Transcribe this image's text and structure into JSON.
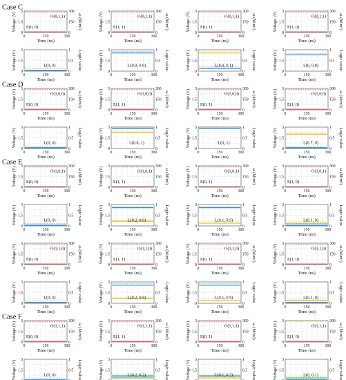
{
  "axes": {
    "time_label": "Time (ns)",
    "voltage_label": "Voltage (V)",
    "omega_label": "ω (M/m²)",
    "logic_label": "Logic value",
    "time_ticks": [
      "0",
      "150",
      "300"
    ],
    "voltage_ticks": [
      "0",
      "1.5",
      "3"
    ],
    "omega_ticks": [
      "0",
      "150",
      "300"
    ],
    "logic_ticks": [
      "0",
      "0.5",
      "1"
    ]
  },
  "colors": {
    "red": "#e02020",
    "blue": "#2f86c8",
    "yellow": "#e8c020",
    "green": "#5cc040",
    "grid": "#cfcfcf"
  },
  "sections": [
    {
      "name": "Case C",
      "rows": [
        [
          {
            "kind": "top",
            "e_label": "E(0, 0)",
            "o_label": "O(0,1,1)",
            "e_color": "red",
            "e_level": 1.0,
            "o_level": 0.92
          },
          {
            "kind": "top",
            "e_label": "E(1, 1)",
            "o_label": "O(0,1,1)",
            "e_color": "red",
            "e_level": 1.0,
            "o_level": 0.92
          },
          {
            "kind": "top",
            "e_label": "E(0, 1)",
            "o_label": "O(0,1,1)",
            "e_color": "red",
            "e_level": 1.0,
            "o_level": 0.92
          },
          {
            "kind": "top",
            "e_label": "E(1, 0)",
            "o_label": "O(0,1,1)",
            "e_color": "red",
            "e_level": 1.0,
            "o_level": 0.92
          }
        ],
        [
          {
            "kind": "bottom",
            "l_label": "L(0, 0)",
            "lines": [
              {
                "color": "blue",
                "level": 0.0
              }
            ]
          },
          {
            "kind": "bottom",
            "l_label": "L(0.9, 0.9)",
            "lines": [
              {
                "color": "blue",
                "level": 0.9
              }
            ]
          },
          {
            "kind": "bottom",
            "l_label": "L(0.9, 0.1)",
            "lines": [
              {
                "color": "yellow",
                "level": 0.9
              },
              {
                "color": "blue",
                "level": 0.1
              }
            ]
          },
          {
            "kind": "bottom",
            "l_label": "L(0, 0.8)",
            "lines": [
              {
                "color": "blue",
                "level": 0.8
              }
            ]
          }
        ]
      ]
    },
    {
      "name": "Case D",
      "rows": [
        [
          {
            "kind": "top",
            "e_label": "E(0, 0)",
            "o_label": "O(1,0,0)",
            "e_color": "red",
            "e_level": 1.0,
            "o_level": 0.92
          },
          {
            "kind": "top",
            "e_label": "E(1, 1)",
            "o_label": "O(1,0,0)",
            "e_color": "red",
            "e_level": 1.0,
            "o_level": 0.92
          },
          {
            "kind": "top",
            "e_label": "E(0, 1)",
            "o_label": "O(1,0,0)",
            "e_color": "red",
            "e_level": 1.0,
            "o_level": 0.92
          },
          {
            "kind": "top",
            "e_label": "E(1, 0)",
            "o_label": "O(1,0,0)",
            "e_color": "red",
            "e_level": 1.0,
            "o_level": 0.92
          }
        ],
        [
          {
            "kind": "bottom",
            "l_label": "L(0, 0)",
            "lines": [
              {
                "color": "blue",
                "level": 0.0
              }
            ]
          },
          {
            "kind": "bottom",
            "l_label": "L(0.8, 1)",
            "lines": [
              {
                "color": "blue",
                "level": 1.0
              },
              {
                "color": "yellow",
                "level": 0.8
              }
            ]
          },
          {
            "kind": "bottom",
            "l_label": "L(0, 1)",
            "lines": [
              {
                "color": "blue",
                "level": 1.0
              }
            ]
          },
          {
            "kind": "bottom",
            "l_label": "L(0.7, 0)",
            "lines": [
              {
                "color": "yellow",
                "level": 0.7
              },
              {
                "color": "blue",
                "level": 0.0
              }
            ]
          }
        ]
      ]
    },
    {
      "name": "Case E",
      "rows": [
        [
          {
            "kind": "top",
            "e_label": "E(0, 0)",
            "o_label": "O(1,0,1)",
            "e_color": "red",
            "e_level": 1.0,
            "o_level": 0.92
          },
          {
            "kind": "top",
            "e_label": "E(1, 1)",
            "o_label": "O(1,0,1)",
            "e_color": "red",
            "e_level": 1.0,
            "o_level": 0.92
          },
          {
            "kind": "top",
            "e_label": "E(0, 1)",
            "o_label": "O(1,0,1)",
            "e_color": "red",
            "e_level": 1.0,
            "o_level": 0.92
          },
          {
            "kind": "top",
            "e_label": "E(1, 0)",
            "o_label": "O(1,0,1)",
            "e_color": "red",
            "e_level": 1.0,
            "o_level": 0.92
          }
        ],
        [
          {
            "kind": "bottom",
            "l_label": "L(0, 0)",
            "lines": [
              {
                "color": "blue",
                "level": 0.0
              }
            ]
          },
          {
            "kind": "bottom",
            "l_label": "L(0.2, 0.9)",
            "lines": [
              {
                "color": "blue",
                "level": 0.9
              },
              {
                "color": "yellow",
                "level": 0.2
              }
            ]
          },
          {
            "kind": "bottom",
            "l_label": "L(0.1, 0.9)",
            "lines": [
              {
                "color": "blue",
                "level": 0.9
              },
              {
                "color": "yellow",
                "level": 0.1
              }
            ]
          },
          {
            "kind": "bottom",
            "l_label": "L(0.1, 0)",
            "lines": [
              {
                "color": "yellow",
                "level": 0.1
              },
              {
                "color": "blue",
                "level": 0.0
              }
            ]
          }
        ],
        [
          {
            "kind": "top",
            "e_label": "E(0, 0)",
            "o_label": "O(1,1,0)",
            "e_color": "red",
            "e_level": 1.0,
            "o_level": 0.92
          },
          {
            "kind": "top",
            "e_label": "E(1, 1)",
            "o_label": "O(1,1,0)",
            "e_color": "red",
            "e_level": 1.0,
            "o_level": 0.92
          },
          {
            "kind": "top",
            "e_label": "E(0, 1)",
            "o_label": "O(1,1,0)",
            "e_color": "red",
            "e_level": 1.0,
            "o_level": 0.92
          },
          {
            "kind": "top",
            "e_label": "E(1, 0)",
            "o_label": "O(1,1,0)",
            "e_color": "red",
            "e_level": 1.0,
            "o_level": 0.92
          }
        ],
        [
          {
            "kind": "bottom",
            "l_label": "L(0, 0)",
            "lines": [
              {
                "color": "blue",
                "level": 0.0
              }
            ]
          },
          {
            "kind": "bottom",
            "l_label": "L(0.2, 0.9)",
            "lines": [
              {
                "color": "blue",
                "level": 0.9
              },
              {
                "color": "yellow",
                "level": 0.2
              }
            ]
          },
          {
            "kind": "bottom",
            "l_label": "L(0.1, 0.9)",
            "lines": [
              {
                "color": "blue",
                "level": 0.9
              },
              {
                "color": "yellow",
                "level": 0.1
              }
            ]
          },
          {
            "kind": "bottom",
            "l_label": "L(0.1, 0)",
            "lines": [
              {
                "color": "yellow",
                "level": 0.1
              },
              {
                "color": "blue",
                "level": 0.0
              }
            ]
          }
        ]
      ]
    },
    {
      "name": "Case F",
      "rows": [
        [
          {
            "kind": "top",
            "e_label": "E(0, 0)",
            "o_label": "O(1,1,1)",
            "e_color": "red",
            "e_level": 1.0,
            "o_level": 0.92
          },
          {
            "kind": "top",
            "e_label": "E(1, 1)",
            "o_label": "O(1,1,1)",
            "e_color": "red",
            "e_level": 1.0,
            "o_level": 0.92
          },
          {
            "kind": "top",
            "e_label": "E(0, 1)",
            "o_label": "O(1,1,1)",
            "e_color": "red",
            "e_level": 1.0,
            "o_level": 0.92
          },
          {
            "kind": "top",
            "e_label": "E(1, 0)",
            "o_label": "O(1,1,1)",
            "e_color": "yellow",
            "e_level": 1.0,
            "o_level": 0.92
          }
        ],
        [
          {
            "kind": "bottom",
            "l_label": "L(0, 0)",
            "lines": [
              {
                "color": "blue",
                "level": 0.0
              }
            ]
          },
          {
            "kind": "bottom",
            "l_label": "L(0.2, 0.2)",
            "lines": [
              {
                "color": "blue",
                "level": 0.2
              },
              {
                "color": "green",
                "level": 0.1
              }
            ]
          },
          {
            "kind": "bottom",
            "l_label": "L(0.1, 0.2)",
            "lines": [
              {
                "color": "blue",
                "level": 0.2
              },
              {
                "color": "yellow",
                "level": 0.1
              }
            ]
          },
          {
            "kind": "bottom",
            "l_label": "L(0, 0.1)",
            "lines": [
              {
                "color": "green",
                "level": 0.1
              },
              {
                "color": "blue",
                "level": 0.0
              }
            ]
          }
        ]
      ]
    }
  ],
  "chart_data": [
    {
      "type": "line",
      "title": "",
      "section": "Case C",
      "panels": [
        {
          "x": [
            0,
            300
          ],
          "xlabel": "Time (ns)",
          "ylabel": "Voltage (V)",
          "y2label": "ω (M/m²)",
          "series_labels": [
            "E(0, 0)",
            "O(0,1,1)"
          ],
          "ylim": [
            0,
            3
          ]
        },
        {
          "x": [
            0,
            300
          ],
          "xlabel": "Time (ns)",
          "ylabel": "Voltage (V)",
          "y2label": "Logic value",
          "series_labels": [
            "L(0, 0)",
            "L(0.9, 0.9)",
            "L(0.9, 0.1)",
            "L(0, 0.8)"
          ],
          "y2lim": [
            0,
            1
          ]
        }
      ]
    },
    {
      "type": "line",
      "title": "",
      "section": "Case D",
      "panels": [
        {
          "x": [
            0,
            300
          ],
          "xlabel": "Time (ns)",
          "ylabel": "Voltage (V)",
          "y2label": "Logic value",
          "series_labels": [
            "L(0, 0)",
            "L(0.8, 1)",
            "L(0, 1)",
            "L(0.7, 0)"
          ],
          "y2lim": [
            0,
            1
          ]
        }
      ]
    },
    {
      "type": "line",
      "title": "",
      "section": "Case E",
      "panels": [
        {
          "x": [
            0,
            300
          ],
          "xlabel": "Time (ns)",
          "ylabel": "Voltage (V)",
          "y2label": "Logic value",
          "series_labels": [
            "L(0, 0)",
            "L(0.2, 0.9)",
            "L(0.1, 0.9)",
            "L(0.1, 0)"
          ],
          "y2lim": [
            0,
            1
          ]
        }
      ]
    },
    {
      "type": "line",
      "title": "",
      "section": "Case F",
      "panels": [
        {
          "x": [
            0,
            300
          ],
          "xlabel": "Time (ns)",
          "ylabel": "Voltage (V)",
          "y2label": "Logic value",
          "series_labels": [
            "L(0, 0)",
            "L(0.2, 0.2)",
            "L(0.1, 0.2)",
            "L(0, 0.1)"
          ],
          "y2lim": [
            0,
            1
          ]
        }
      ]
    }
  ]
}
